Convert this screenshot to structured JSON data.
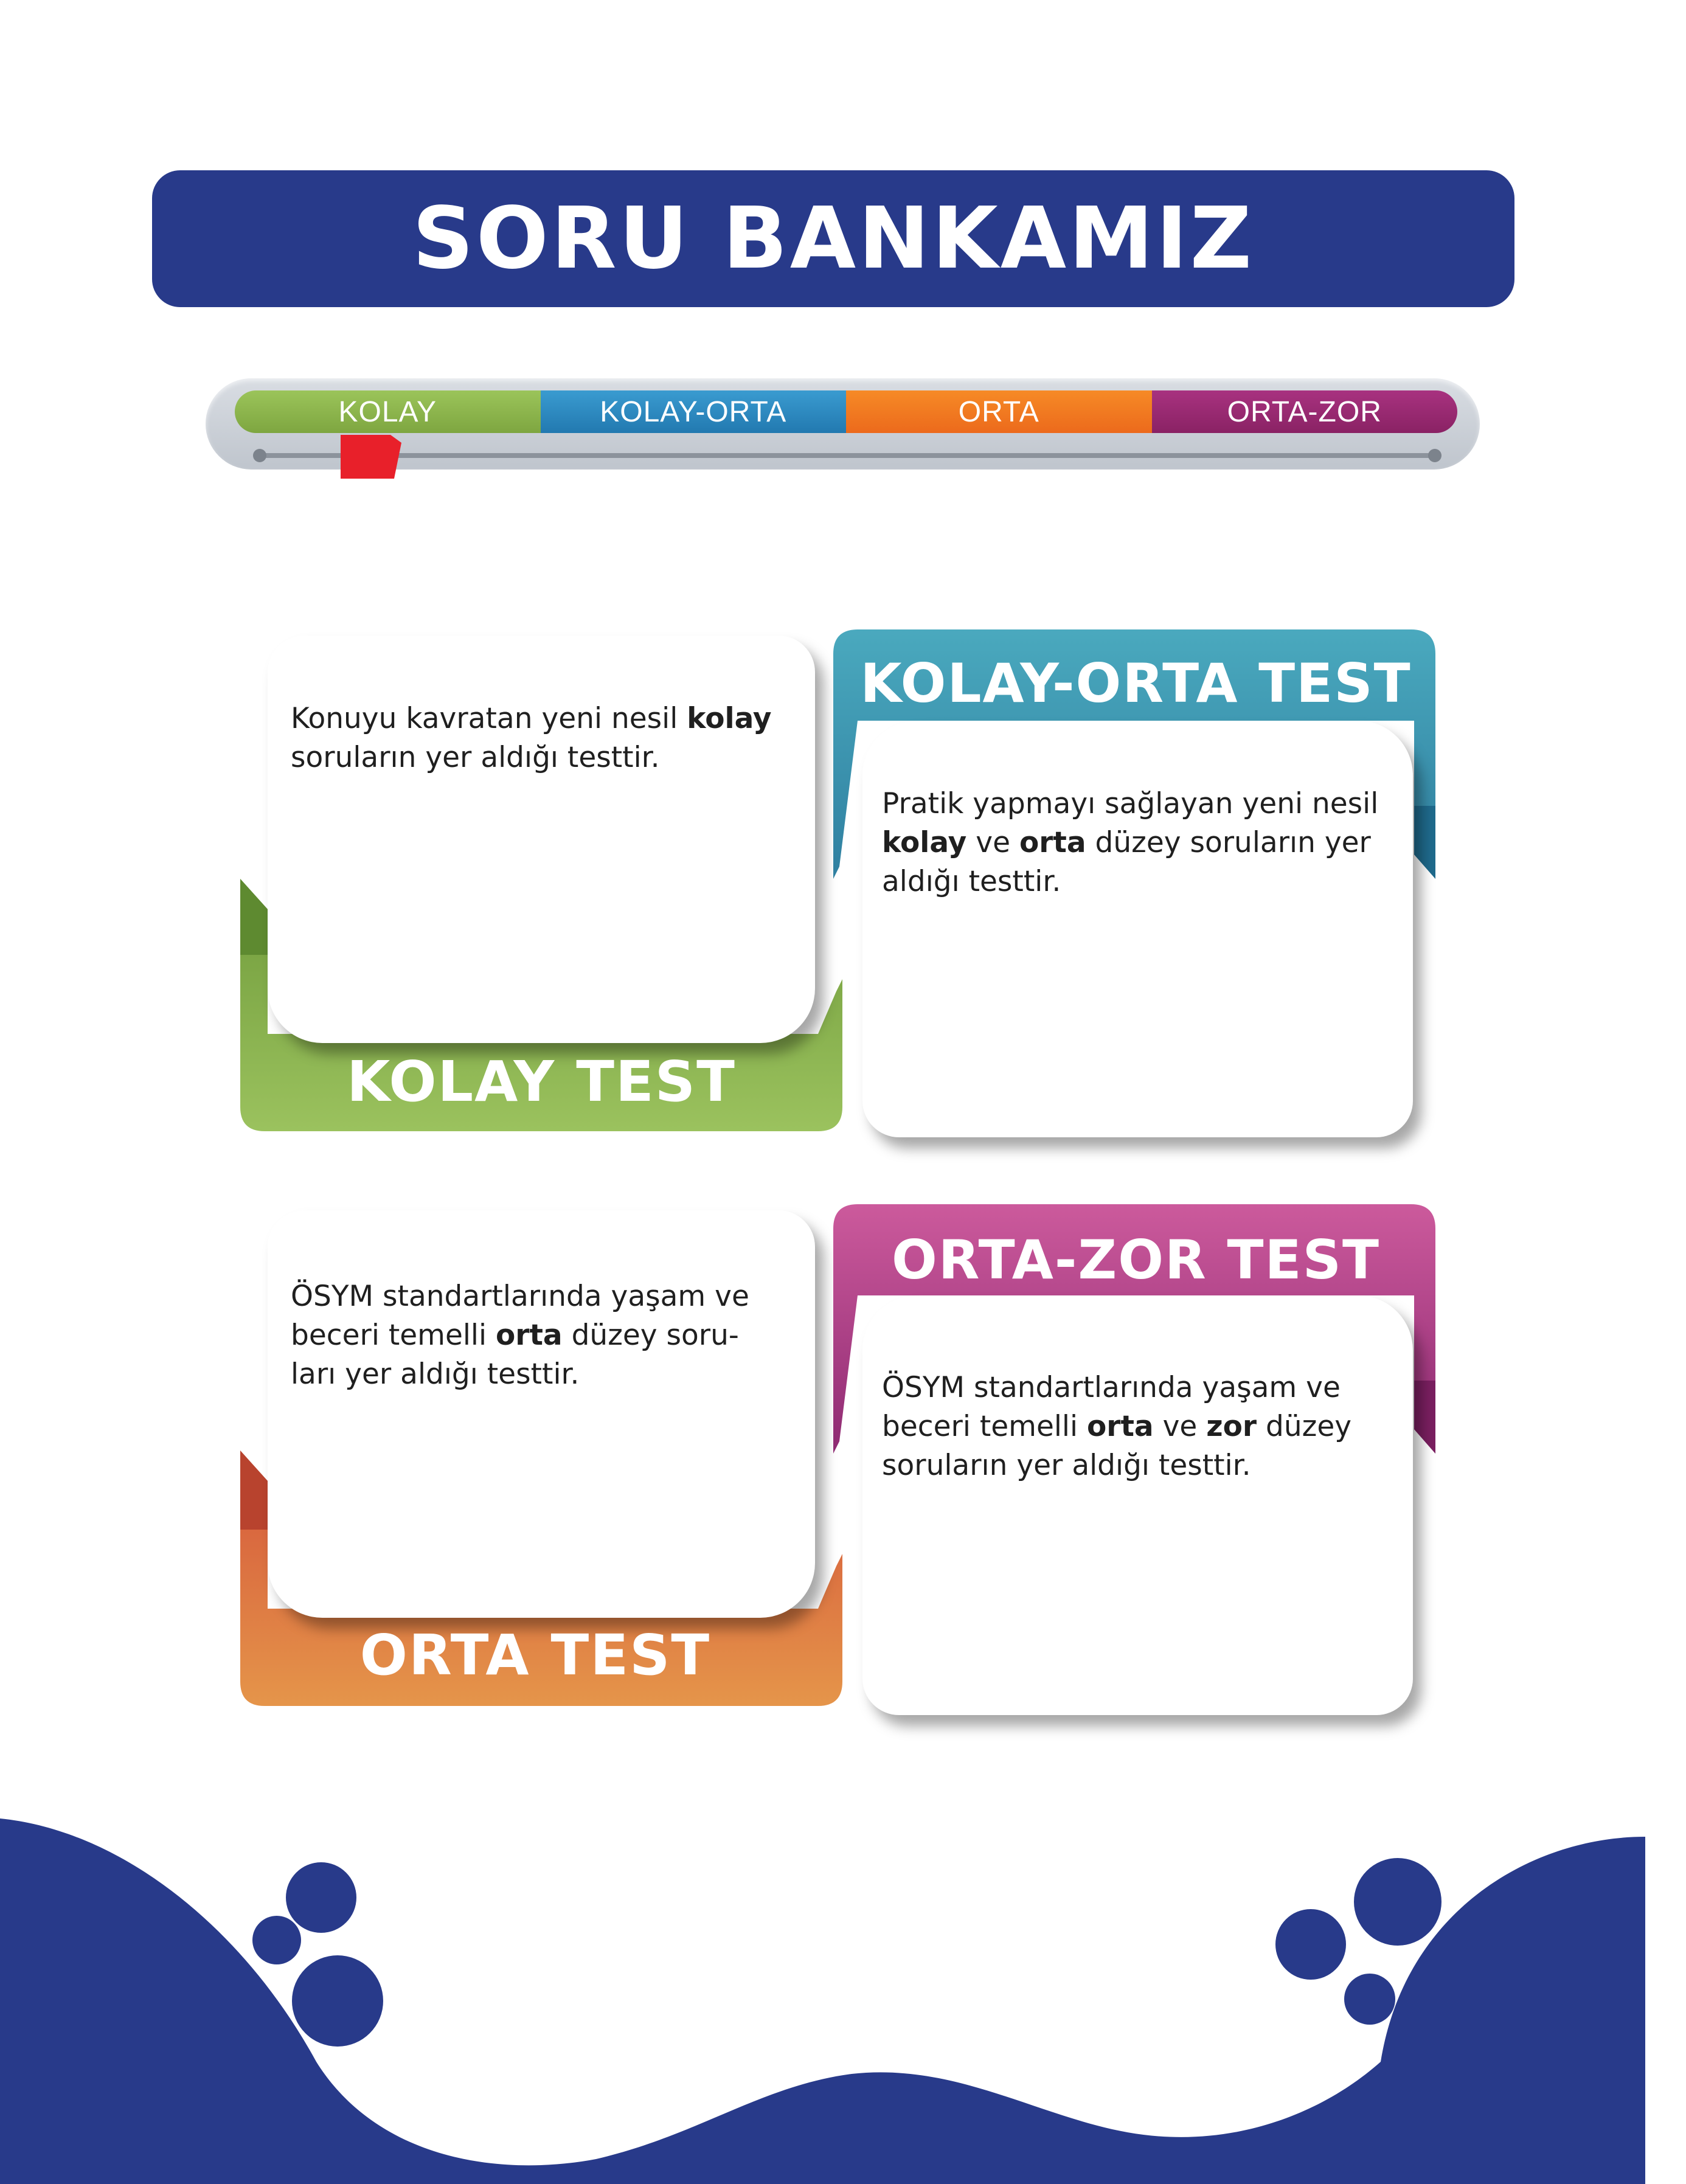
{
  "title": "SORU BANKAMIZ",
  "difficulty_scale": {
    "levels": [
      {
        "label": "KOLAY",
        "color": "#8cb44d"
      },
      {
        "label": "KOLAY-ORTA",
        "color": "#2d8ac0"
      },
      {
        "label": "ORTA",
        "color": "#f07e22"
      },
      {
        "label": "ORTA-ZOR",
        "color": "#9c2a72"
      }
    ],
    "marker_color": "#e8202a"
  },
  "tests": [
    {
      "name": "KOLAY TEST",
      "color": "#8fb552",
      "desc_parts": [
        "Konuyu kavratan yeni nesil ",
        "kolay",
        " soruların yer aldığı testtir."
      ]
    },
    {
      "name": "KOLAY-ORTA TEST",
      "color": "#3a9cb3",
      "desc_parts": [
        "Pratik yapmayı sağlayan yeni nesil ",
        "kolay",
        " ve ",
        "orta",
        " düzey soruların yer aldığı testtir."
      ]
    },
    {
      "name": "ORTA TEST",
      "color": "#e0804a",
      "desc_parts": [
        "ÖSYM standartlarında yaşam ve beceri temelli ",
        "orta",
        " düzey soru-ları yer aldığı testtir."
      ]
    },
    {
      "name": "ORTA-ZOR TEST",
      "color": "#c04a8e",
      "desc_parts": [
        "ÖSYM standartlarında yaşam ve beceri temelli ",
        "orta",
        " ve ",
        "zor",
        " düzey soruların yer aldığı testtir."
      ]
    }
  ],
  "theme": {
    "navy": "#283a8a"
  }
}
